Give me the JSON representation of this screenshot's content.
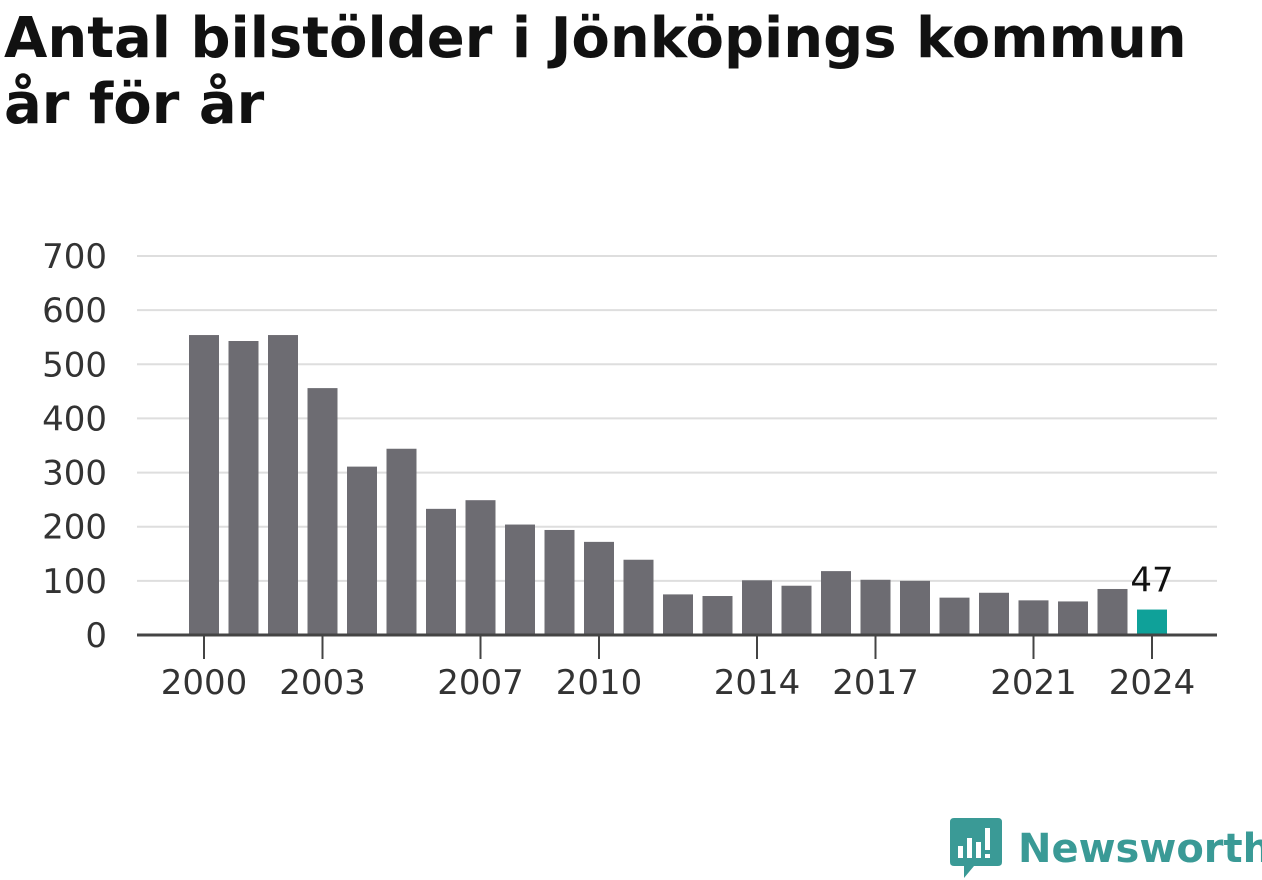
{
  "chart_data": {
    "type": "bar",
    "title": "Antal bilstölder i Jönköpings kommun år för år",
    "categories": [
      "2000",
      "2001",
      "2002",
      "2003",
      "2004",
      "2005",
      "2006",
      "2007",
      "2008",
      "2009",
      "2010",
      "2011",
      "2012",
      "2013",
      "2014",
      "2015",
      "2016",
      "2017",
      "2018",
      "2019",
      "2020",
      "2021",
      "2022",
      "2023",
      "2024"
    ],
    "values": [
      554,
      543,
      554,
      456,
      311,
      344,
      233,
      249,
      204,
      194,
      172,
      139,
      75,
      72,
      101,
      91,
      118,
      102,
      100,
      69,
      78,
      64,
      62,
      85,
      47
    ],
    "x_tick_labels": [
      "2000",
      "2003",
      "2007",
      "2010",
      "2014",
      "2017",
      "2021",
      "2024"
    ],
    "y_ticks": [
      0,
      100,
      200,
      300,
      400,
      500,
      600,
      700
    ],
    "ylim": [
      0,
      700
    ],
    "xlabel": "",
    "ylabel": "",
    "grid": true,
    "highlight": {
      "category": "2024",
      "label": "47"
    },
    "colors": {
      "bar": "#6d6c72",
      "highlight": "#0fa199",
      "grid": "#dedede",
      "axis": "#444444"
    }
  },
  "brand": {
    "name": "Newsworthy",
    "icon": "chart-speech-bubble-icon",
    "color": "#3a9a96"
  }
}
